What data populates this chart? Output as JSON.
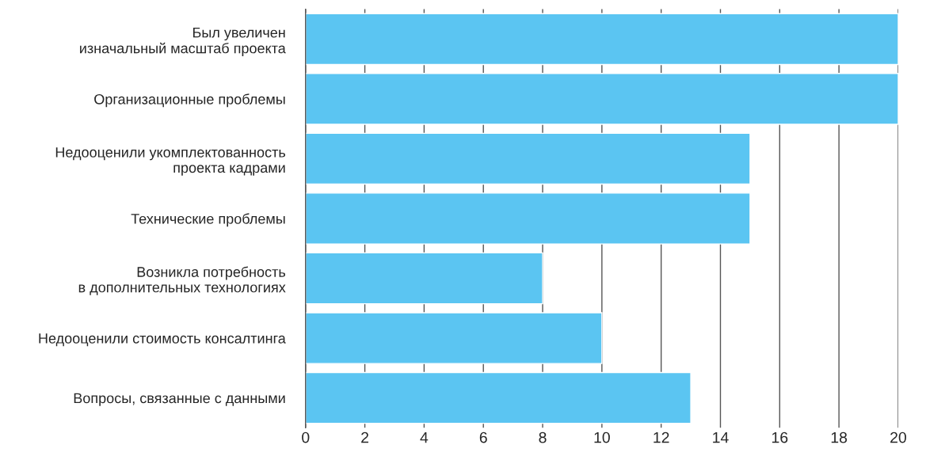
{
  "chart_data": {
    "type": "bar",
    "orientation": "horizontal",
    "categories": [
      "Был увеличен\nизначальный масштаб проекта",
      "Организационные проблемы",
      "Недооценили укомплектованность\nпроекта кадрами",
      "Технические проблемы",
      "Возникла потребность\nв дополнительных технологиях",
      "Недооценили стоимость консалтинга",
      "Вопросы, связанные с данными"
    ],
    "values": [
      20,
      20,
      15,
      15,
      8,
      10,
      13
    ],
    "color": "#5bc5f2",
    "xlim": [
      0,
      20
    ],
    "xticks": [
      0,
      2,
      4,
      6,
      8,
      10,
      12,
      14,
      16,
      18,
      20
    ],
    "grid": "x"
  }
}
